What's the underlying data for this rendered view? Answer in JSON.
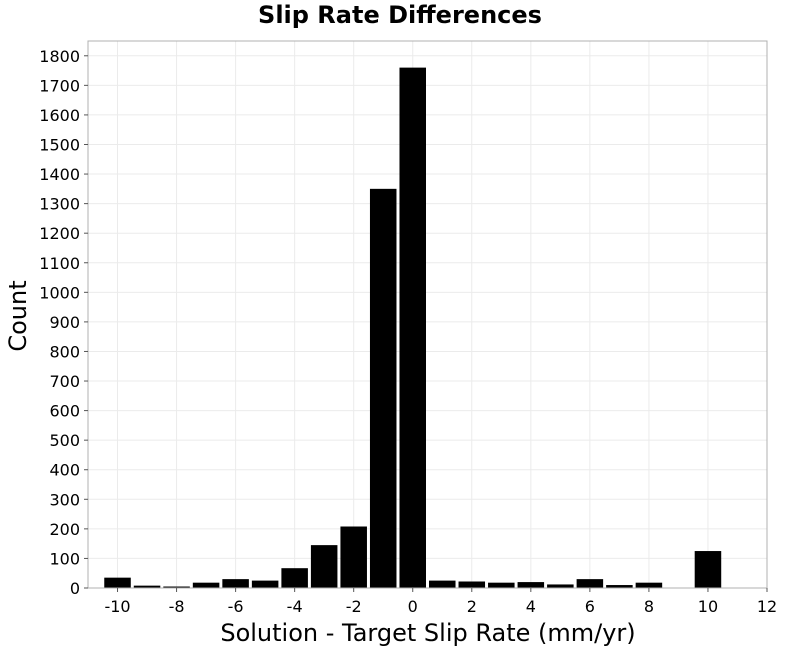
{
  "chart_data": {
    "type": "bar",
    "title": "Slip Rate Differences",
    "xlabel": "Solution - Target Slip Rate (mm/yr)",
    "ylabel": "Count",
    "xlim": [
      -11,
      12
    ],
    "ylim": [
      0,
      1850
    ],
    "xticks": [
      -10,
      -8,
      -6,
      -4,
      -2,
      0,
      2,
      4,
      6,
      8,
      10,
      12
    ],
    "yticks": [
      0,
      100,
      200,
      300,
      400,
      500,
      600,
      700,
      800,
      900,
      1000,
      1100,
      1200,
      1300,
      1400,
      1500,
      1600,
      1700,
      1800
    ],
    "bin_width": 1,
    "grid": true,
    "legend": "none",
    "bar_color": "#000000",
    "bins": [
      {
        "x": -10,
        "value": 35
      },
      {
        "x": -9,
        "value": 8
      },
      {
        "x": -8,
        "value": 5
      },
      {
        "x": -7,
        "value": 18
      },
      {
        "x": -6,
        "value": 30
      },
      {
        "x": -5,
        "value": 25
      },
      {
        "x": -4,
        "value": 67
      },
      {
        "x": -3,
        "value": 145
      },
      {
        "x": -2,
        "value": 208
      },
      {
        "x": -1,
        "value": 1350
      },
      {
        "x": 0,
        "value": 1760
      },
      {
        "x": 1,
        "value": 25
      },
      {
        "x": 2,
        "value": 22
      },
      {
        "x": 3,
        "value": 18
      },
      {
        "x": 4,
        "value": 20
      },
      {
        "x": 5,
        "value": 12
      },
      {
        "x": 6,
        "value": 30
      },
      {
        "x": 7,
        "value": 10
      },
      {
        "x": 8,
        "value": 18
      },
      {
        "x": 10,
        "value": 125
      }
    ]
  }
}
